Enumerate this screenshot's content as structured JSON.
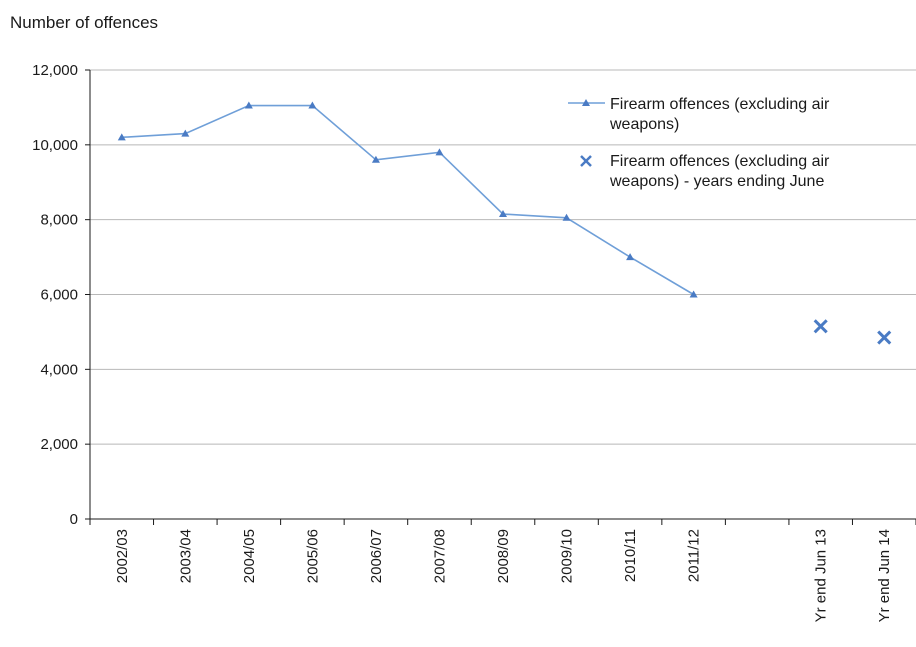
{
  "chart_data": {
    "type": "line",
    "ylabel": "Number of offences",
    "xlabel": "",
    "ylim": [
      0,
      12000
    ],
    "yticks": [
      0,
      2000,
      4000,
      6000,
      8000,
      10000,
      12000
    ],
    "ytick_labels": [
      "0",
      "2,000",
      "4,000",
      "6,000",
      "8,000",
      "10,000",
      "12,000"
    ],
    "categories": [
      "2002/03",
      "2003/04",
      "2004/05",
      "2005/06",
      "2006/07",
      "2007/08",
      "2008/09",
      "2009/10",
      "2010/11",
      "2011/12",
      "",
      "Yr end Jun 13",
      "Yr end Jun 14"
    ],
    "grid": "horizontal",
    "legend_position": "top-right",
    "series": [
      {
        "name": "Firearm offences (excluding air weapons)",
        "style": "line-triangle",
        "color": "#6f9fd8",
        "values": [
          10200,
          10300,
          11050,
          11050,
          9600,
          9800,
          8150,
          8050,
          7000,
          6000,
          null,
          null,
          null
        ]
      },
      {
        "name": "Firearm offences (excluding air weapons) - years ending June",
        "style": "x-marker",
        "color": "#4a7bc4",
        "values": [
          null,
          null,
          null,
          null,
          null,
          null,
          null,
          null,
          null,
          null,
          null,
          5150,
          4850
        ]
      }
    ]
  }
}
